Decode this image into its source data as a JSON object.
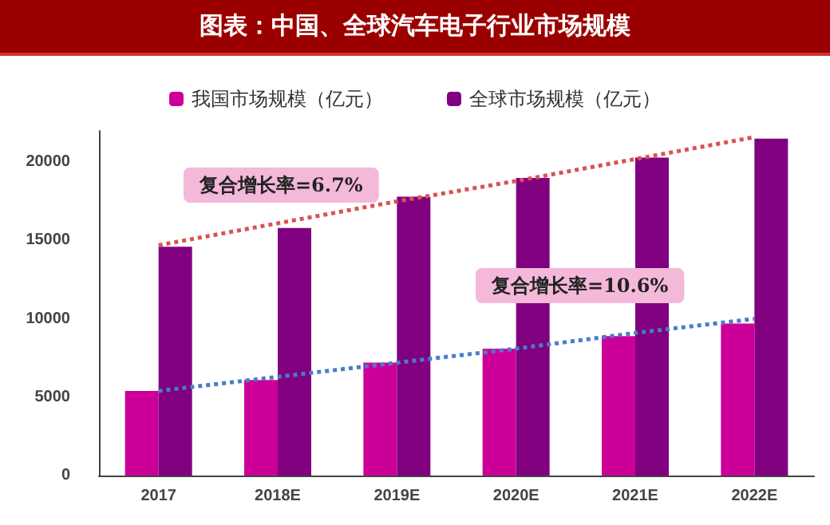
{
  "chart_data": {
    "type": "bar",
    "title": "图表：中国、全球汽车电子行业市场规模",
    "categories": [
      "2017",
      "2018E",
      "2019E",
      "2020E",
      "2021E",
      "2022E"
    ],
    "series": [
      {
        "name": "我国市场规模（亿元）",
        "color": "#cc0099",
        "values": [
          5400,
          6100,
          7200,
          8100,
          8900,
          9700
        ]
      },
      {
        "name": "全球市场规模（亿元）",
        "color": "#800080",
        "values": [
          14600,
          15800,
          17800,
          19000,
          20300,
          21500
        ]
      },
      {
        "type": "line",
        "color": "#d9534f",
        "values": [
          14700,
          16100,
          17500,
          18800,
          20200,
          21600
        ],
        "line_style": "dotted",
        "marker": "none"
      },
      {
        "type": "line",
        "color": "#4a7cc9",
        "values": [
          5400,
          6300,
          7200,
          8100,
          9100,
          10000
        ],
        "line_style": "dotted",
        "marker": "none"
      }
    ],
    "annotations": [
      "复合增长率=6.7%",
      "复合增长率=10.6%"
    ],
    "ylim": [
      0,
      22000
    ],
    "yticks": [
      0,
      5000,
      10000,
      15000,
      20000
    ],
    "grid": false,
    "legend": "top"
  }
}
